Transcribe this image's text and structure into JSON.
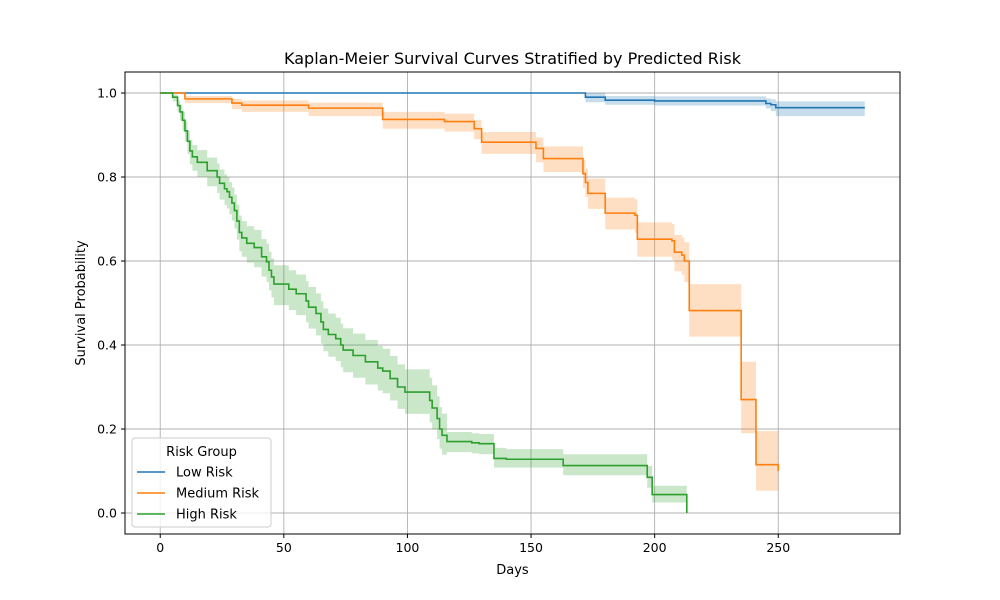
{
  "chart_data": {
    "type": "line",
    "title": "Kaplan-Meier Survival Curves Stratified by Predicted Risk",
    "xlabel": "Days",
    "ylabel": "Survival Probability",
    "xlim": [
      -14.25,
      299.25
    ],
    "ylim": [
      -0.05,
      1.05
    ],
    "xticks": [
      0,
      50,
      100,
      150,
      200,
      250
    ],
    "yticks": [
      0.0,
      0.2,
      0.4,
      0.6,
      0.8,
      1.0
    ],
    "ytick_labels": [
      "0.0",
      "0.2",
      "0.4",
      "0.6",
      "0.8",
      "1.0"
    ],
    "grid": true,
    "legend": {
      "title": "Risk Group",
      "placement": "lower-left"
    },
    "series": [
      {
        "name": "Low Risk",
        "color": "#1f77b4",
        "steps": [
          [
            0,
            1.0
          ],
          [
            172,
            0.99
          ],
          [
            180,
            0.983
          ],
          [
            200,
            0.981
          ],
          [
            245,
            0.975
          ],
          [
            247,
            0.972
          ],
          [
            249,
            0.965
          ],
          [
            285,
            0.965
          ]
        ],
        "ci_lower": [
          [
            0,
            1.0
          ],
          [
            172,
            0.978
          ],
          [
            180,
            0.972
          ],
          [
            200,
            0.97
          ],
          [
            245,
            0.963
          ],
          [
            247,
            0.957
          ],
          [
            249,
            0.945
          ],
          [
            285,
            0.945
          ]
        ],
        "ci_upper": [
          [
            0,
            1.0
          ],
          [
            172,
            1.0
          ],
          [
            180,
            0.993
          ],
          [
            200,
            0.992
          ],
          [
            245,
            0.987
          ],
          [
            247,
            0.985
          ],
          [
            249,
            0.98
          ],
          [
            285,
            0.98
          ]
        ]
      },
      {
        "name": "Medium Risk",
        "color": "#ff7f0e",
        "steps": [
          [
            0,
            1.0
          ],
          [
            10,
            0.986
          ],
          [
            29,
            0.976
          ],
          [
            33,
            0.971
          ],
          [
            60,
            0.964
          ],
          [
            90,
            0.937
          ],
          [
            115,
            0.932
          ],
          [
            127,
            0.915
          ],
          [
            130,
            0.883
          ],
          [
            152,
            0.868
          ],
          [
            155,
            0.844
          ],
          [
            171,
            0.808
          ],
          [
            172,
            0.787
          ],
          [
            173,
            0.761
          ],
          [
            180,
            0.714
          ],
          [
            192,
            0.709
          ],
          [
            193,
            0.652
          ],
          [
            207,
            0.648
          ],
          [
            208,
            0.621
          ],
          [
            211,
            0.614
          ],
          [
            212,
            0.6
          ],
          [
            214,
            0.482
          ],
          [
            235,
            0.27
          ],
          [
            241,
            0.115
          ],
          [
            250,
            0.1
          ]
        ],
        "ci_lower": [
          [
            0,
            1.0
          ],
          [
            10,
            0.976
          ],
          [
            29,
            0.962
          ],
          [
            33,
            0.955
          ],
          [
            60,
            0.945
          ],
          [
            90,
            0.915
          ],
          [
            115,
            0.908
          ],
          [
            127,
            0.89
          ],
          [
            130,
            0.855
          ],
          [
            152,
            0.835
          ],
          [
            155,
            0.812
          ],
          [
            171,
            0.774
          ],
          [
            172,
            0.752
          ],
          [
            173,
            0.724
          ],
          [
            180,
            0.675
          ],
          [
            192,
            0.668
          ],
          [
            193,
            0.61
          ],
          [
            207,
            0.603
          ],
          [
            208,
            0.576
          ],
          [
            211,
            0.567
          ],
          [
            212,
            0.55
          ],
          [
            214,
            0.42
          ],
          [
            235,
            0.19
          ],
          [
            241,
            0.053
          ],
          [
            250,
            0.053
          ]
        ],
        "ci_upper": [
          [
            0,
            1.0
          ],
          [
            10,
            0.993
          ],
          [
            29,
            0.986
          ],
          [
            33,
            0.982
          ],
          [
            60,
            0.977
          ],
          [
            90,
            0.955
          ],
          [
            115,
            0.951
          ],
          [
            127,
            0.936
          ],
          [
            130,
            0.907
          ],
          [
            152,
            0.894
          ],
          [
            155,
            0.873
          ],
          [
            171,
            0.84
          ],
          [
            172,
            0.82
          ],
          [
            173,
            0.796
          ],
          [
            180,
            0.751
          ],
          [
            192,
            0.747
          ],
          [
            193,
            0.692
          ],
          [
            207,
            0.688
          ],
          [
            208,
            0.662
          ],
          [
            211,
            0.656
          ],
          [
            212,
            0.645
          ],
          [
            214,
            0.545
          ],
          [
            235,
            0.36
          ],
          [
            241,
            0.195
          ],
          [
            250,
            0.195
          ]
        ]
      },
      {
        "name": "High Risk",
        "color": "#2ca02c",
        "steps": [
          [
            0,
            1.0
          ],
          [
            5,
            0.99
          ],
          [
            7,
            0.97
          ],
          [
            8,
            0.955
          ],
          [
            9,
            0.935
          ],
          [
            10,
            0.91
          ],
          [
            11,
            0.885
          ],
          [
            12,
            0.862
          ],
          [
            13,
            0.848
          ],
          [
            15,
            0.835
          ],
          [
            19,
            0.815
          ],
          [
            23,
            0.8
          ],
          [
            24,
            0.785
          ],
          [
            26,
            0.772
          ],
          [
            27,
            0.765
          ],
          [
            28,
            0.752
          ],
          [
            29,
            0.738
          ],
          [
            30,
            0.72
          ],
          [
            31,
            0.695
          ],
          [
            32,
            0.668
          ],
          [
            33,
            0.655
          ],
          [
            35,
            0.642
          ],
          [
            38,
            0.632
          ],
          [
            41,
            0.61
          ],
          [
            43,
            0.598
          ],
          [
            44,
            0.578
          ],
          [
            45,
            0.562
          ],
          [
            46,
            0.545
          ],
          [
            52,
            0.533
          ],
          [
            55,
            0.522
          ],
          [
            59,
            0.505
          ],
          [
            60,
            0.49
          ],
          [
            63,
            0.475
          ],
          [
            65,
            0.455
          ],
          [
            66,
            0.437
          ],
          [
            68,
            0.425
          ],
          [
            71,
            0.415
          ],
          [
            73,
            0.4
          ],
          [
            74,
            0.388
          ],
          [
            78,
            0.375
          ],
          [
            83,
            0.36
          ],
          [
            88,
            0.345
          ],
          [
            90,
            0.338
          ],
          [
            93,
            0.32
          ],
          [
            96,
            0.3
          ],
          [
            99,
            0.288
          ],
          [
            109,
            0.268
          ],
          [
            110,
            0.25
          ],
          [
            112,
            0.225
          ],
          [
            113,
            0.2
          ],
          [
            114,
            0.185
          ],
          [
            116,
            0.17
          ],
          [
            126,
            0.167
          ],
          [
            129,
            0.165
          ],
          [
            135,
            0.13
          ],
          [
            140,
            0.128
          ],
          [
            163,
            0.113
          ],
          [
            197,
            0.085
          ],
          [
            199,
            0.044
          ],
          [
            213,
            0.0
          ]
        ],
        "ci_lower": [
          [
            0,
            1.0
          ],
          [
            5,
            0.98
          ],
          [
            7,
            0.955
          ],
          [
            8,
            0.935
          ],
          [
            9,
            0.91
          ],
          [
            10,
            0.885
          ],
          [
            11,
            0.855
          ],
          [
            12,
            0.83
          ],
          [
            13,
            0.815
          ],
          [
            15,
            0.8
          ],
          [
            19,
            0.778
          ],
          [
            23,
            0.762
          ],
          [
            24,
            0.746
          ],
          [
            26,
            0.733
          ],
          [
            27,
            0.725
          ],
          [
            28,
            0.711
          ],
          [
            29,
            0.696
          ],
          [
            30,
            0.677
          ],
          [
            31,
            0.651
          ],
          [
            32,
            0.623
          ],
          [
            33,
            0.61
          ],
          [
            35,
            0.596
          ],
          [
            38,
            0.585
          ],
          [
            41,
            0.563
          ],
          [
            43,
            0.55
          ],
          [
            44,
            0.53
          ],
          [
            45,
            0.513
          ],
          [
            46,
            0.495
          ],
          [
            52,
            0.483
          ],
          [
            55,
            0.471
          ],
          [
            59,
            0.454
          ],
          [
            60,
            0.439
          ],
          [
            63,
            0.423
          ],
          [
            65,
            0.403
          ],
          [
            66,
            0.385
          ],
          [
            68,
            0.372
          ],
          [
            71,
            0.362
          ],
          [
            73,
            0.347
          ],
          [
            74,
            0.335
          ],
          [
            78,
            0.322
          ],
          [
            83,
            0.306
          ],
          [
            88,
            0.292
          ],
          [
            90,
            0.285
          ],
          [
            93,
            0.268
          ],
          [
            96,
            0.248
          ],
          [
            99,
            0.236
          ],
          [
            109,
            0.216
          ],
          [
            110,
            0.199
          ],
          [
            112,
            0.176
          ],
          [
            113,
            0.153
          ],
          [
            114,
            0.139
          ],
          [
            116,
            0.145
          ],
          [
            126,
            0.142
          ],
          [
            129,
            0.14
          ],
          [
            135,
            0.108
          ],
          [
            140,
            0.108
          ],
          [
            163,
            0.09
          ],
          [
            197,
            0.06
          ],
          [
            199,
            0.025
          ],
          [
            213,
            0.025
          ]
        ],
        "ci_upper": [
          [
            0,
            1.0
          ],
          [
            5,
            0.996
          ],
          [
            7,
            0.982
          ],
          [
            8,
            0.971
          ],
          [
            9,
            0.955
          ],
          [
            10,
            0.932
          ],
          [
            11,
            0.91
          ],
          [
            12,
            0.888
          ],
          [
            13,
            0.876
          ],
          [
            15,
            0.864
          ],
          [
            19,
            0.846
          ],
          [
            23,
            0.832
          ],
          [
            24,
            0.818
          ],
          [
            26,
            0.806
          ],
          [
            27,
            0.8
          ],
          [
            28,
            0.788
          ],
          [
            29,
            0.775
          ],
          [
            30,
            0.758
          ],
          [
            31,
            0.734
          ],
          [
            32,
            0.708
          ],
          [
            33,
            0.695
          ],
          [
            35,
            0.683
          ],
          [
            38,
            0.674
          ],
          [
            41,
            0.652
          ],
          [
            43,
            0.641
          ],
          [
            44,
            0.622
          ],
          [
            45,
            0.606
          ],
          [
            46,
            0.59
          ],
          [
            52,
            0.578
          ],
          [
            55,
            0.568
          ],
          [
            59,
            0.552
          ],
          [
            60,
            0.538
          ],
          [
            63,
            0.523
          ],
          [
            65,
            0.504
          ],
          [
            66,
            0.487
          ],
          [
            68,
            0.475
          ],
          [
            71,
            0.465
          ],
          [
            73,
            0.451
          ],
          [
            74,
            0.44
          ],
          [
            78,
            0.427
          ],
          [
            83,
            0.412
          ],
          [
            88,
            0.398
          ],
          [
            90,
            0.391
          ],
          [
            93,
            0.374
          ],
          [
            96,
            0.354
          ],
          [
            99,
            0.342
          ],
          [
            109,
            0.322
          ],
          [
            110,
            0.304
          ],
          [
            112,
            0.278
          ],
          [
            113,
            0.252
          ],
          [
            114,
            0.237
          ],
          [
            116,
            0.193
          ],
          [
            126,
            0.19
          ],
          [
            129,
            0.188
          ],
          [
            135,
            0.155
          ],
          [
            140,
            0.152
          ],
          [
            163,
            0.14
          ],
          [
            197,
            0.112
          ],
          [
            199,
            0.065
          ],
          [
            213,
            0.065
          ]
        ]
      }
    ]
  }
}
